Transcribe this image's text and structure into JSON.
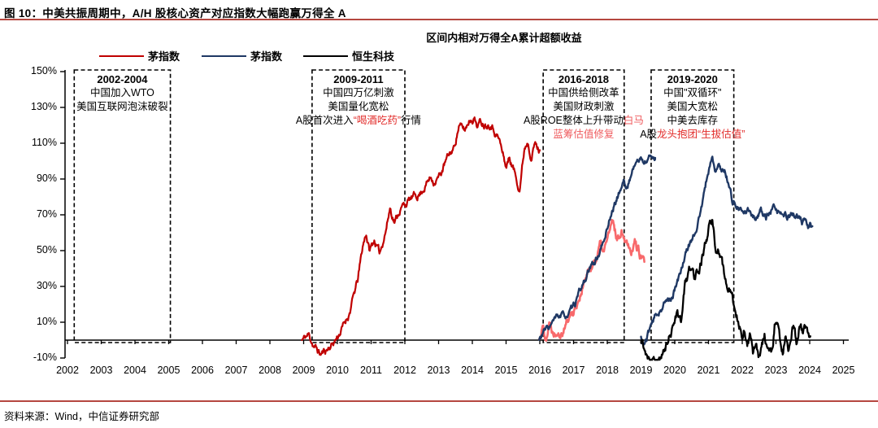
{
  "figure": {
    "title": "图 10：中美共振周期中，A/H 股核心资产对应指数大幅跑赢万得全 A",
    "source": "资料来源：Wind，中信证券研究部",
    "accent_color": "#b5473f"
  },
  "chart_data": {
    "type": "line",
    "title": "区间内相对万得全A累计超额收益",
    "unit": "%",
    "grid": false,
    "legend_position": "top-left",
    "xlim": [
      2002,
      2025.3
    ],
    "ylim": [
      -10,
      150
    ],
    "y_ticks": [
      150,
      130,
      110,
      90,
      70,
      50,
      30,
      10,
      -10
    ],
    "x_ticks": [
      2002,
      2003,
      2004,
      2005,
      2006,
      2007,
      2008,
      2009,
      2010,
      2011,
      2012,
      2013,
      2014,
      2015,
      2016,
      2017,
      2018,
      2019,
      2020,
      2021,
      2022,
      2023,
      2024,
      2025
    ],
    "legend": [
      {
        "label": "茅指数",
        "color": "#c00000"
      },
      {
        "label": "茅指数",
        "color": "#1f3864"
      },
      {
        "label": "恒生科技",
        "color": "#000000"
      }
    ],
    "series": [
      {
        "name": "茅指数-红-2009至2016段",
        "color": "#c00000",
        "width": 2.2,
        "noise": 3.0,
        "seed": 11,
        "points": [
          [
            2008.95,
            0
          ],
          [
            2009.15,
            3
          ],
          [
            2009.3,
            -3
          ],
          [
            2009.5,
            -8
          ],
          [
            2009.7,
            -5
          ],
          [
            2009.9,
            -1
          ],
          [
            2010.1,
            5
          ],
          [
            2010.35,
            15
          ],
          [
            2010.6,
            33
          ],
          [
            2010.75,
            52
          ],
          [
            2010.85,
            60
          ],
          [
            2010.95,
            50
          ],
          [
            2011.1,
            56
          ],
          [
            2011.25,
            48
          ],
          [
            2011.45,
            63
          ],
          [
            2011.56,
            74
          ],
          [
            2011.7,
            66
          ],
          [
            2011.85,
            73
          ],
          [
            2012.0,
            76
          ],
          [
            2012.2,
            79
          ],
          [
            2012.45,
            82
          ],
          [
            2012.65,
            88
          ],
          [
            2012.78,
            91
          ],
          [
            2012.86,
            89
          ],
          [
            2013.05,
            92
          ],
          [
            2013.15,
            97
          ],
          [
            2013.3,
            103
          ],
          [
            2013.45,
            107
          ],
          [
            2013.6,
            120
          ],
          [
            2013.78,
            117
          ],
          [
            2013.9,
            123
          ],
          [
            2014.05,
            125
          ],
          [
            2014.15,
            120
          ],
          [
            2014.25,
            122
          ],
          [
            2014.4,
            121
          ],
          [
            2014.55,
            122
          ],
          [
            2014.65,
            118
          ],
          [
            2014.8,
            112
          ],
          [
            2014.9,
            104
          ],
          [
            2015.0,
            97
          ],
          [
            2015.1,
            102
          ],
          [
            2015.25,
            94
          ],
          [
            2015.4,
            85
          ],
          [
            2015.55,
            108
          ],
          [
            2015.65,
            112
          ],
          [
            2015.75,
            103
          ],
          [
            2015.85,
            110
          ],
          [
            2016.0,
            105
          ]
        ]
      },
      {
        "name": "茅指数-粉-2016至2019段",
        "color": "#f8696b",
        "width": 2.6,
        "noise": 4.0,
        "seed": 22,
        "points": [
          [
            2015.98,
            0
          ],
          [
            2016.08,
            8
          ],
          [
            2016.18,
            3
          ],
          [
            2016.3,
            10
          ],
          [
            2016.42,
            5
          ],
          [
            2016.55,
            8
          ],
          [
            2016.65,
            6
          ],
          [
            2016.8,
            11
          ],
          [
            2016.92,
            14
          ],
          [
            2017.0,
            17
          ],
          [
            2017.12,
            22
          ],
          [
            2017.25,
            29
          ],
          [
            2017.4,
            36
          ],
          [
            2017.55,
            42
          ],
          [
            2017.7,
            48
          ],
          [
            2017.8,
            53
          ],
          [
            2017.9,
            48
          ],
          [
            2018.0,
            57
          ],
          [
            2018.1,
            62
          ],
          [
            2018.18,
            64
          ],
          [
            2018.3,
            56
          ],
          [
            2018.42,
            63
          ],
          [
            2018.52,
            58
          ],
          [
            2018.62,
            55
          ],
          [
            2018.72,
            52
          ],
          [
            2018.82,
            56
          ],
          [
            2018.92,
            50
          ],
          [
            2019.0,
            47
          ],
          [
            2019.1,
            42
          ]
        ]
      },
      {
        "name": "茅指数-蓝-2016至2019段",
        "color": "#1f3864",
        "width": 2.4,
        "noise": 2.6,
        "seed": 33,
        "points": [
          [
            2015.98,
            0
          ],
          [
            2016.1,
            4
          ],
          [
            2016.25,
            7
          ],
          [
            2016.4,
            10
          ],
          [
            2016.55,
            13
          ],
          [
            2016.7,
            13.5
          ],
          [
            2016.85,
            14
          ],
          [
            2017.0,
            18
          ],
          [
            2017.15,
            25
          ],
          [
            2017.3,
            32
          ],
          [
            2017.45,
            38
          ],
          [
            2017.6,
            43
          ],
          [
            2017.75,
            48
          ],
          [
            2017.9,
            55
          ],
          [
            2018.0,
            63
          ],
          [
            2018.1,
            70
          ],
          [
            2018.25,
            77
          ],
          [
            2018.4,
            85
          ],
          [
            2018.5,
            89
          ],
          [
            2018.57,
            84
          ],
          [
            2018.68,
            91
          ],
          [
            2018.8,
            98
          ],
          [
            2018.9,
            100
          ],
          [
            2019.0,
            101
          ],
          [
            2019.1,
            99
          ],
          [
            2019.2,
            101
          ],
          [
            2019.3,
            103
          ],
          [
            2019.42,
            102
          ]
        ]
      },
      {
        "name": "茅指数-蓝-2019至2024段",
        "color": "#1f3864",
        "width": 2.4,
        "noise": 2.8,
        "seed": 44,
        "points": [
          [
            2019.0,
            1
          ],
          [
            2019.08,
            -3
          ],
          [
            2019.17,
            1
          ],
          [
            2019.3,
            9
          ],
          [
            2019.45,
            14
          ],
          [
            2019.6,
            18
          ],
          [
            2019.75,
            21
          ],
          [
            2019.9,
            24
          ],
          [
            2020.0,
            28
          ],
          [
            2020.1,
            33
          ],
          [
            2020.22,
            42
          ],
          [
            2020.35,
            50
          ],
          [
            2020.5,
            56
          ],
          [
            2020.62,
            62
          ],
          [
            2020.75,
            70
          ],
          [
            2020.85,
            79
          ],
          [
            2020.95,
            90
          ],
          [
            2021.05,
            99
          ],
          [
            2021.12,
            102
          ],
          [
            2021.2,
            93
          ],
          [
            2021.3,
            96
          ],
          [
            2021.4,
            95
          ],
          [
            2021.5,
            94
          ],
          [
            2021.6,
            88
          ],
          [
            2021.7,
            79
          ],
          [
            2021.9,
            73
          ],
          [
            2022.05,
            70
          ],
          [
            2022.2,
            73
          ],
          [
            2022.4,
            68.5
          ],
          [
            2022.55,
            72
          ],
          [
            2022.7,
            68
          ],
          [
            2022.9,
            73
          ],
          [
            2023.1,
            70.5
          ],
          [
            2023.3,
            69
          ],
          [
            2023.5,
            70.5
          ],
          [
            2023.7,
            68
          ],
          [
            2023.8,
            65
          ],
          [
            2023.9,
            66
          ],
          [
            2023.97,
            62
          ],
          [
            2024.03,
            64
          ],
          [
            2024.08,
            61
          ]
        ]
      },
      {
        "name": "恒生科技-2019至2024段",
        "color": "#000000",
        "width": 2.3,
        "noise": 4.2,
        "seed": 55,
        "points": [
          [
            2019.0,
            -1
          ],
          [
            2019.15,
            -6
          ],
          [
            2019.3,
            -8.5
          ],
          [
            2019.5,
            -9.5
          ],
          [
            2019.62,
            -10
          ],
          [
            2019.72,
            -6
          ],
          [
            2019.85,
            2
          ],
          [
            2020.0,
            14
          ],
          [
            2020.08,
            16
          ],
          [
            2020.18,
            10
          ],
          [
            2020.3,
            30
          ],
          [
            2020.45,
            40
          ],
          [
            2020.6,
            35
          ],
          [
            2020.75,
            44
          ],
          [
            2020.9,
            52
          ],
          [
            2021.05,
            64
          ],
          [
            2021.12,
            66
          ],
          [
            2021.2,
            52
          ],
          [
            2021.3,
            51
          ],
          [
            2021.42,
            40
          ],
          [
            2021.55,
            30
          ],
          [
            2021.68,
            23
          ],
          [
            2021.78,
            17
          ],
          [
            2021.88,
            12
          ],
          [
            2022.0,
            4.5
          ],
          [
            2022.07,
            9.5
          ],
          [
            2022.15,
            -2
          ],
          [
            2022.25,
            2
          ],
          [
            2022.32,
            -8
          ],
          [
            2022.42,
            -2
          ],
          [
            2022.5,
            -8.5
          ],
          [
            2022.58,
            -4
          ],
          [
            2022.66,
            2
          ],
          [
            2022.76,
            -6.5
          ],
          [
            2022.86,
            -9
          ],
          [
            2022.96,
            8
          ],
          [
            2023.05,
            11
          ],
          [
            2023.12,
            -2
          ],
          [
            2023.2,
            -6.5
          ],
          [
            2023.28,
            4.5
          ],
          [
            2023.36,
            -7
          ],
          [
            2023.46,
            4
          ],
          [
            2023.52,
            9.5
          ],
          [
            2023.6,
            -1
          ],
          [
            2023.68,
            7
          ],
          [
            2023.78,
            3.5
          ],
          [
            2023.84,
            9.5
          ],
          [
            2023.92,
            5
          ],
          [
            2023.98,
            0.5
          ],
          [
            2024.02,
            2.5
          ]
        ]
      }
    ],
    "annotations": [
      {
        "period": "2002-2004",
        "box": {
          "x_from": 2002.2,
          "x_to": 2005.05
        },
        "lines": [
          [
            {
              "t": "中国加入WTO"
            }
          ],
          [
            {
              "t": "美国互联网泡沫破裂"
            }
          ]
        ]
      },
      {
        "period": "2009-2011",
        "box": {
          "x_from": 2009.25,
          "x_to": 2012.0
        },
        "lines": [
          [
            {
              "t": "中国四万亿刺激"
            }
          ],
          [
            {
              "t": "美国量化宽松"
            }
          ],
          [
            {
              "t": "A股首次进入"
            },
            {
              "t": "“喝酒吃药”",
              "c": "#e22d2b"
            },
            {
              "t": "行情"
            }
          ]
        ]
      },
      {
        "period": "2016-2018",
        "box": {
          "x_from": 2016.1,
          "x_to": 2018.5
        },
        "lines": [
          [
            {
              "t": "中国供给侧改革"
            }
          ],
          [
            {
              "t": "美国财政刺激"
            }
          ],
          [
            {
              "t": "A股ROE整体上升带动"
            },
            {
              "t": "白马",
              "c": "#ef5b5e"
            }
          ],
          [
            {
              "t": "蓝筹估值修复",
              "c": "#ef5b5e"
            }
          ]
        ]
      },
      {
        "period": "2019-2020",
        "box": {
          "x_from": 2019.3,
          "x_to": 2021.75
        },
        "lines": [
          [
            {
              "t": "中国\"双循环\""
            }
          ],
          [
            {
              "t": "美国大宽松"
            }
          ],
          [
            {
              "t": "中美去库存"
            }
          ],
          [
            {
              "t": "A股"
            },
            {
              "t": "龙头抱团“生拔估值”",
              "c": "#e22d2b"
            }
          ]
        ]
      }
    ]
  }
}
